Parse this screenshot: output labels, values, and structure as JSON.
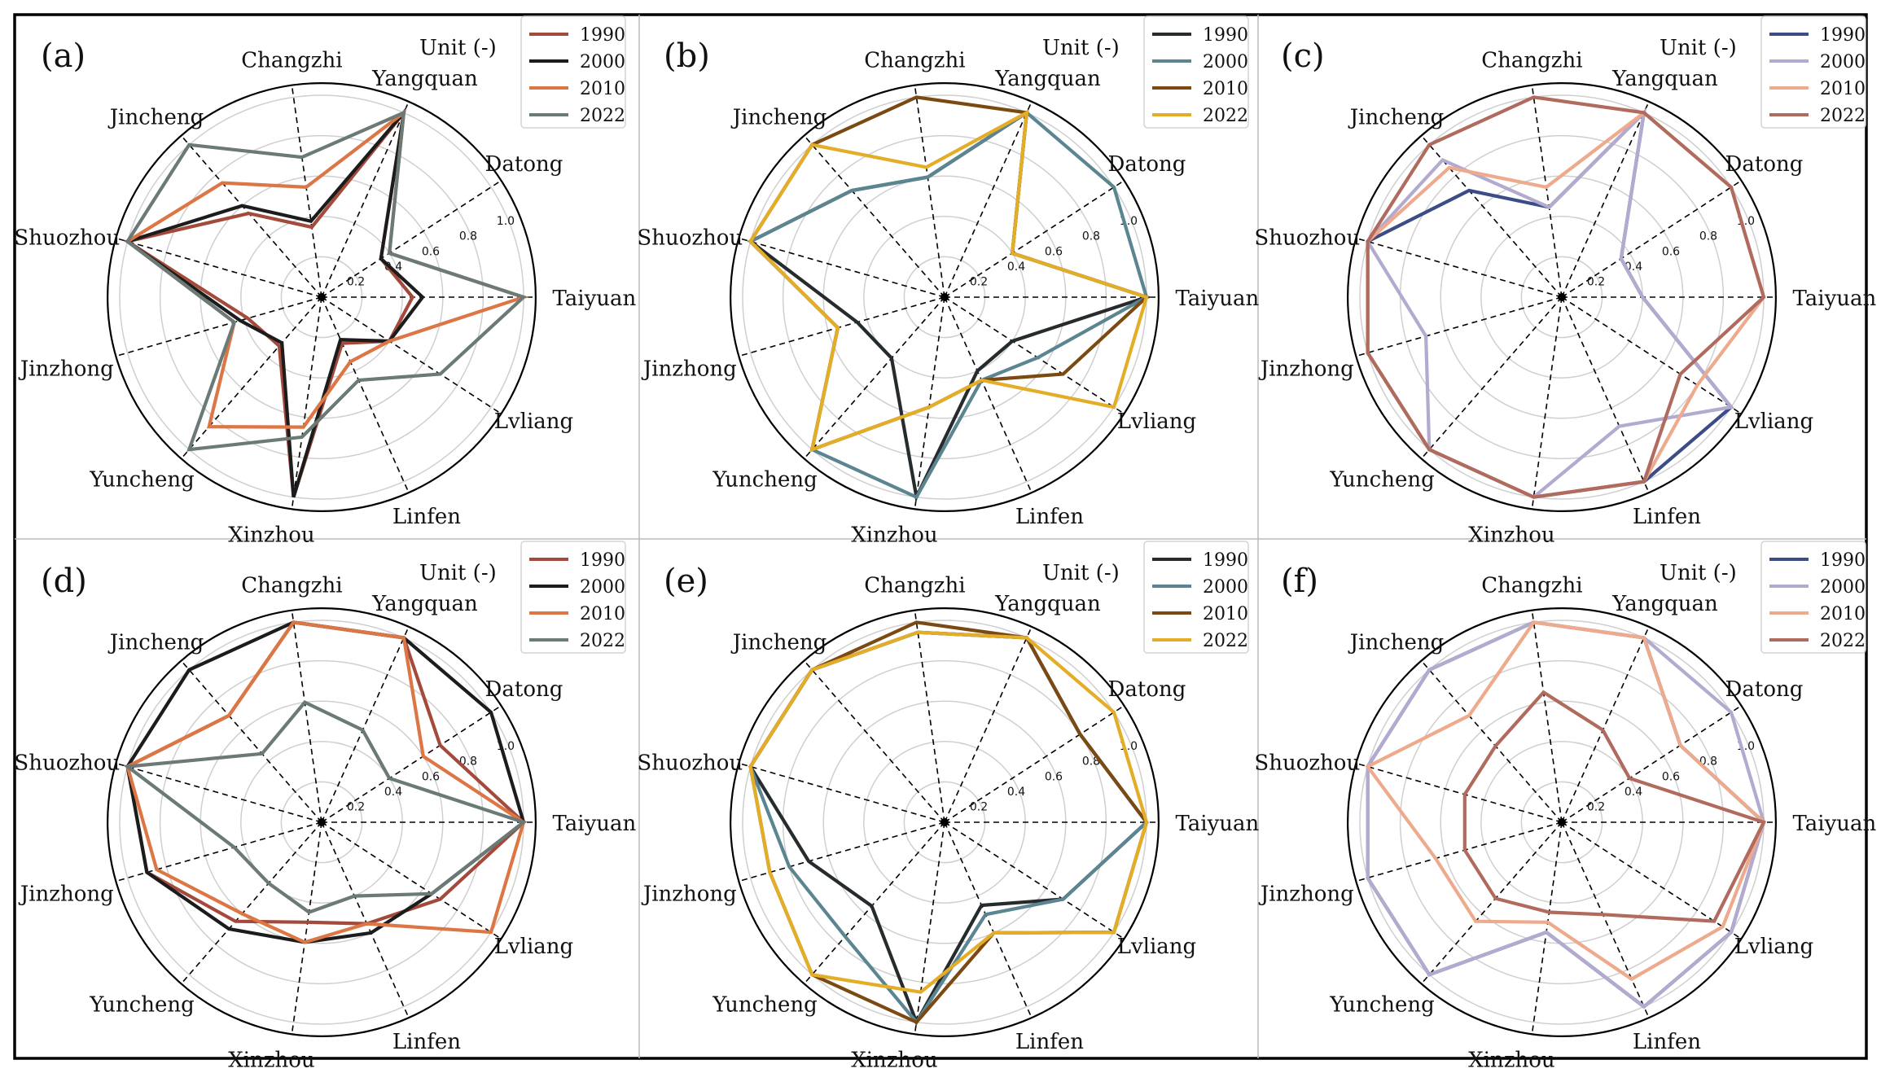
{
  "chart_data": [
    {
      "type": "radar",
      "panel_label": "(a)",
      "unit": "Unit (-)",
      "categories": [
        "Taiyuan",
        "Datong",
        "Yangquan",
        "Changzhi",
        "Jincheng",
        "Shuozhou",
        "Jinzhong",
        "Yuncheng",
        "Xinzhou",
        "Linfen",
        "Lvliang"
      ],
      "radial_ticks": [
        "0.2",
        "0.4",
        "0.6",
        "0.8",
        "1.0"
      ],
      "rlim": [
        0,
        1.0
      ],
      "series": [
        {
          "name": "1990",
          "color": "#a34a3c",
          "values": [
            0.45,
            0.35,
            1.0,
            0.35,
            0.55,
            1.0,
            0.38,
            0.32,
            1.0,
            0.25,
            0.4
          ]
        },
        {
          "name": "2000",
          "color": "#1c1c1c",
          "values": [
            0.5,
            0.35,
            1.0,
            0.38,
            0.6,
            1.0,
            0.42,
            0.3,
            1.0,
            0.23,
            0.4
          ]
        },
        {
          "name": "2010",
          "color": "#dd7645",
          "values": [
            1.0,
            0.4,
            1.0,
            0.55,
            0.75,
            1.0,
            0.45,
            0.85,
            0.65,
            0.35,
            0.4
          ]
        },
        {
          "name": "2022",
          "color": "#6b7a76",
          "values": [
            1.0,
            0.4,
            1.0,
            0.7,
            1.0,
            1.0,
            0.45,
            1.0,
            0.7,
            0.45,
            0.7
          ]
        }
      ],
      "legend_position": "top-right"
    },
    {
      "type": "radar",
      "panel_label": "(b)",
      "unit": "Unit (-)",
      "categories": [
        "Taiyuan",
        "Datong",
        "Yangquan",
        "Changzhi",
        "Jincheng",
        "Shuozhou",
        "Jinzhong",
        "Yuncheng",
        "Xinzhou",
        "Linfen",
        "Lvliang"
      ],
      "radial_ticks": [
        "0.2",
        "0.4",
        "0.6",
        "0.8",
        "1.0"
      ],
      "rlim": [
        0,
        1.0
      ],
      "series": [
        {
          "name": "1990",
          "color": "#262b2e",
          "values": [
            1.0,
            0.4,
            1.0,
            0.6,
            0.7,
            1.0,
            0.45,
            0.4,
            1.0,
            0.4,
            0.4
          ]
        },
        {
          "name": "2000",
          "color": "#5b8591",
          "values": [
            1.0,
            1.0,
            1.0,
            0.6,
            0.7,
            1.0,
            0.55,
            1.0,
            1.0,
            0.45,
            0.55
          ]
        },
        {
          "name": "2010",
          "color": "#7a4a12",
          "values": [
            1.0,
            0.4,
            1.0,
            1.0,
            1.0,
            1.0,
            0.55,
            1.0,
            0.55,
            0.45,
            0.7
          ]
        },
        {
          "name": "2022",
          "color": "#e4ad27",
          "values": [
            1.0,
            0.4,
            1.0,
            0.65,
            1.0,
            1.0,
            0.55,
            1.0,
            0.55,
            0.45,
            1.0
          ]
        }
      ],
      "legend_position": "top-right"
    },
    {
      "type": "radar",
      "panel_label": "(c)",
      "unit": "Unit (-)",
      "categories": [
        "Taiyuan",
        "Datong",
        "Yangquan",
        "Changzhi",
        "Jincheng",
        "Shuozhou",
        "Jinzhong",
        "Yuncheng",
        "Xinzhou",
        "Linfen",
        "Lvliang"
      ],
      "radial_ticks": [
        "0.2",
        "0.4",
        "0.6",
        "0.8",
        "1.0"
      ],
      "rlim": [
        0,
        1.0
      ],
      "series": [
        {
          "name": "1990",
          "color": "#3c4c86",
          "values": [
            0.4,
            0.35,
            1.0,
            0.45,
            0.7,
            1.0,
            1.0,
            1.0,
            1.0,
            1.0,
            1.0
          ]
        },
        {
          "name": "2000",
          "color": "#b3aacf",
          "values": [
            0.4,
            0.35,
            1.0,
            0.45,
            0.9,
            1.0,
            0.7,
            1.0,
            1.0,
            0.7,
            1.0
          ]
        },
        {
          "name": "2010",
          "color": "#eeaa8c",
          "values": [
            1.0,
            1.0,
            1.0,
            0.55,
            0.85,
            1.0,
            1.0,
            1.0,
            1.0,
            1.0,
            0.8
          ]
        },
        {
          "name": "2022",
          "color": "#b06a5e",
          "values": [
            1.0,
            1.0,
            1.0,
            1.0,
            1.0,
            1.0,
            1.0,
            1.0,
            1.0,
            1.0,
            0.7
          ]
        }
      ],
      "legend_position": "top-right"
    },
    {
      "type": "radar",
      "panel_label": "(d)",
      "unit": "Unit (-)",
      "categories": [
        "Taiyuan",
        "Datong",
        "Yangquan",
        "Changzhi",
        "Jincheng",
        "Shuozhou",
        "Jinzhong",
        "Yuncheng",
        "Xinzhou",
        "Linfen",
        "Lvliang"
      ],
      "radial_ticks": [
        "0.2",
        "0.4",
        "0.6",
        "0.8",
        "1.0"
      ],
      "rlim": [
        0,
        1.0
      ],
      "series": [
        {
          "name": "1990",
          "color": "#a34a3c",
          "values": [
            1.0,
            0.7,
            1.0,
            1.0,
            0.7,
            1.0,
            0.9,
            0.65,
            0.5,
            0.55,
            0.7
          ]
        },
        {
          "name": "2000",
          "color": "#1c1c1c",
          "values": [
            1.0,
            1.0,
            1.0,
            1.0,
            1.0,
            1.0,
            0.9,
            0.7,
            0.6,
            0.6,
            0.65
          ]
        },
        {
          "name": "2010",
          "color": "#dd7645",
          "values": [
            1.0,
            0.6,
            1.0,
            1.0,
            0.7,
            1.0,
            0.85,
            0.6,
            0.6,
            0.55,
            1.0
          ]
        },
        {
          "name": "2022",
          "color": "#6b7a76",
          "values": [
            1.0,
            0.4,
            0.5,
            0.6,
            0.45,
            1.0,
            0.45,
            0.4,
            0.45,
            0.4,
            0.65
          ]
        }
      ],
      "legend_position": "top-right"
    },
    {
      "type": "radar",
      "panel_label": "(e)",
      "unit": "Unit (-)",
      "categories": [
        "Taiyuan",
        "Datong",
        "Yangquan",
        "Changzhi",
        "Jincheng",
        "Shuozhou",
        "Jinzhong",
        "Yuncheng",
        "Xinzhou",
        "Linfen",
        "Lvliang"
      ],
      "radial_ticks": [
        "0.2",
        "0.4",
        "0.6",
        "0.8",
        "1.0"
      ],
      "rlim": [
        0,
        1.0
      ],
      "series": [
        {
          "name": "1990",
          "color": "#262b2e",
          "values": [
            1.0,
            0.8,
            1.0,
            0.95,
            1.0,
            1.0,
            0.7,
            0.55,
            1.0,
            0.45,
            0.7
          ]
        },
        {
          "name": "2000",
          "color": "#5b8591",
          "values": [
            1.0,
            0.8,
            1.0,
            0.95,
            1.0,
            1.0,
            0.8,
            0.75,
            1.0,
            0.5,
            0.7
          ]
        },
        {
          "name": "2010",
          "color": "#7a4a12",
          "values": [
            1.0,
            0.8,
            1.0,
            1.0,
            1.0,
            1.0,
            0.9,
            1.0,
            1.0,
            0.6,
            1.0
          ]
        },
        {
          "name": "2022",
          "color": "#e4ad27",
          "values": [
            1.0,
            1.0,
            1.0,
            0.95,
            1.0,
            1.0,
            0.9,
            1.0,
            0.85,
            0.6,
            1.0
          ]
        }
      ],
      "legend_position": "top-right"
    },
    {
      "type": "radar",
      "panel_label": "(f)",
      "unit": "Unit (-)",
      "categories": [
        "Taiyuan",
        "Datong",
        "Yangquan",
        "Changzhi",
        "Jincheng",
        "Shuozhou",
        "Jinzhong",
        "Yuncheng",
        "Xinzhou",
        "Linfen",
        "Lvliang"
      ],
      "radial_ticks": [
        "0.2",
        "0.4",
        "0.6",
        "0.8",
        "1.0"
      ],
      "rlim": [
        0,
        1.0
      ],
      "series": [
        {
          "name": "1990",
          "color": "#3c4c86",
          "values": [
            1.0,
            0.7,
            1.0,
            1.0,
            1.0,
            1.0,
            1.0,
            1.0,
            0.55,
            1.0,
            1.0
          ]
        },
        {
          "name": "2000",
          "color": "#b3aacf",
          "values": [
            1.0,
            1.0,
            1.0,
            1.0,
            1.0,
            1.0,
            1.0,
            1.0,
            0.55,
            1.0,
            1.0
          ]
        },
        {
          "name": "2010",
          "color": "#eeaa8c",
          "values": [
            1.0,
            0.7,
            1.0,
            1.0,
            0.7,
            1.0,
            0.65,
            0.65,
            0.5,
            0.85,
            0.95
          ]
        },
        {
          "name": "2022",
          "color": "#b06a5e",
          "values": [
            1.0,
            0.4,
            0.5,
            0.65,
            0.5,
            0.5,
            0.5,
            0.5,
            0.45,
            0.5,
            0.9
          ]
        }
      ],
      "legend_position": "top-right"
    }
  ]
}
